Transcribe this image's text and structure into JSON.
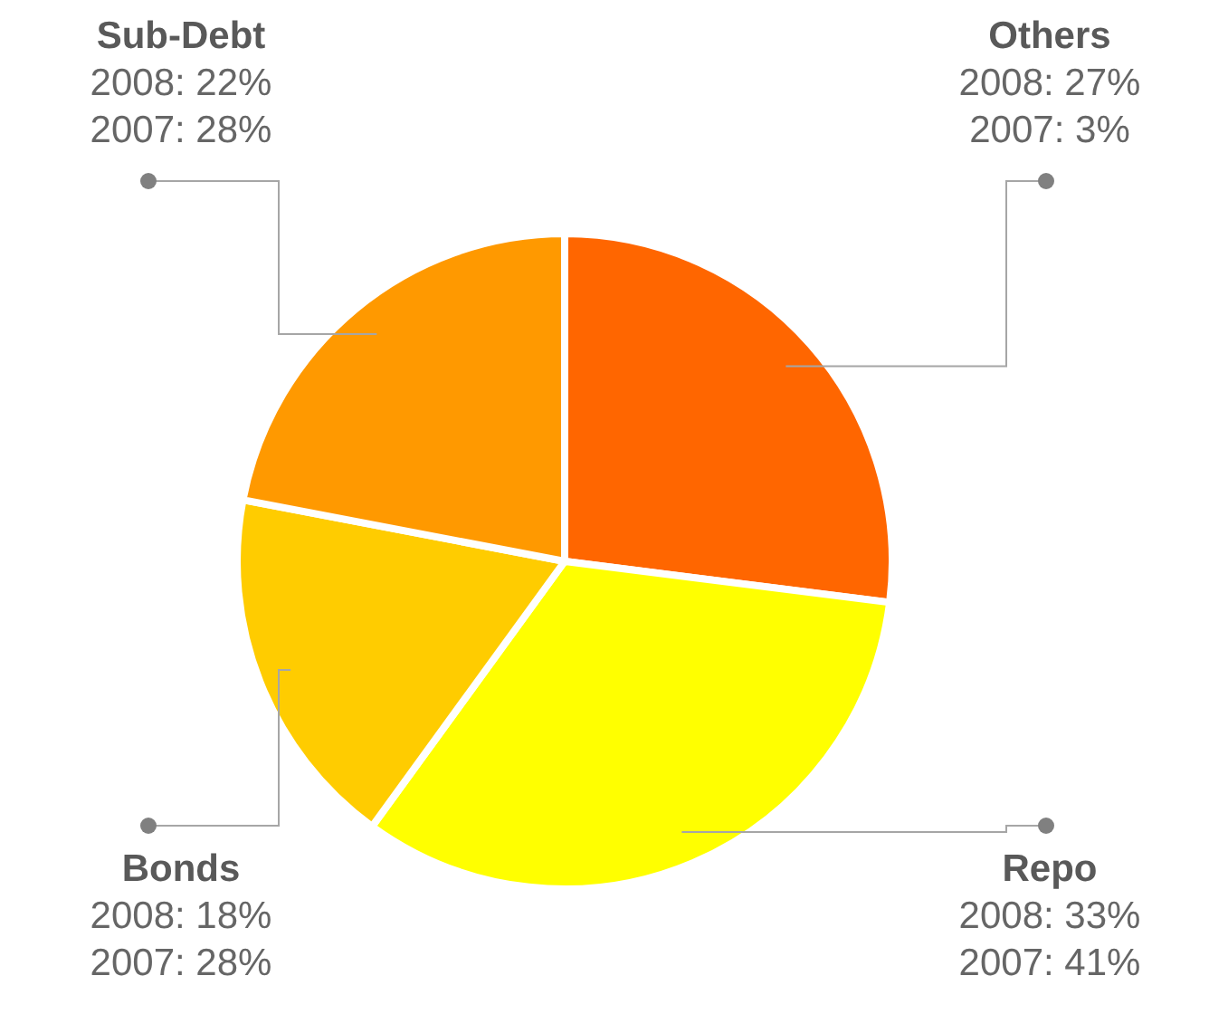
{
  "chart_data": {
    "type": "pie",
    "categories": [
      "Others",
      "Repo",
      "Bonds",
      "Sub-Debt"
    ],
    "values": [
      27,
      33,
      18,
      22
    ],
    "colors": [
      "#ff6600",
      "#ffff00",
      "#ffcc00",
      "#ff9900"
    ],
    "value_labels": [
      "2008: 27%\n2007: 3%",
      "2008: 33%\n2007: 41%",
      "2008: 18%\n2007: 28%",
      "2008: 22%\n2007: 28%"
    ],
    "legend": false
  }
}
